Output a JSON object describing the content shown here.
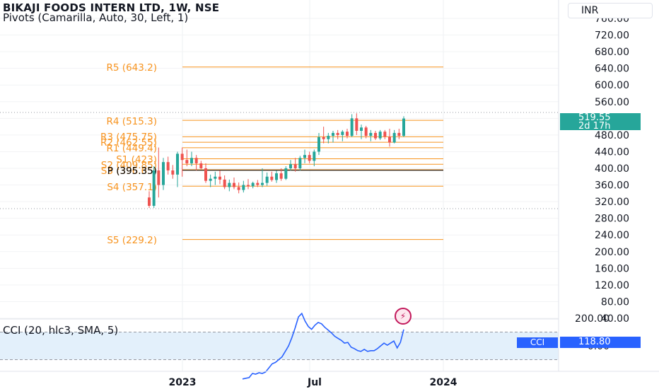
{
  "header": {
    "title": "BIKAJI FOODS INTERN LTD, 1W, NSE",
    "indicator": "Pivots (Camarilla, Auto, 30, Left, 1)",
    "currency": "INR"
  },
  "price_scale": {
    "labels": [
      "760.00",
      "720.00",
      "680.00",
      "640.00",
      "600.00",
      "560.00",
      "520.00",
      "480.00",
      "440.00",
      "400.00",
      "360.00",
      "320.00",
      "280.00",
      "240.00",
      "200.00",
      "160.00",
      "120.00",
      "80.00",
      "40.00"
    ],
    "current_price": "519.55",
    "countdown": "2d 17h"
  },
  "pivot_levels": [
    {
      "label": "R5 (643.2)",
      "value": 643.2,
      "color": "#f7931e"
    },
    {
      "label": "R4 (515.3)",
      "value": 515.3,
      "color": "#f7931e"
    },
    {
      "label": "R3 (475.75)",
      "value": 475.75,
      "color": "#f7931e"
    },
    {
      "label": "R2 (462.55)",
      "value": 462.55,
      "color": "#f7931e"
    },
    {
      "label": "R1 (449.4)",
      "value": 449.4,
      "color": "#f7931e"
    },
    {
      "label": "S1 (423)",
      "value": 423,
      "color": "#f7931e"
    },
    {
      "label": "S2 (409.85)",
      "value": 409.85,
      "color": "#f7931e"
    },
    {
      "label": "S3 (396.65)",
      "value": 396.65,
      "color": "#f7931e"
    },
    {
      "label": "P (395.35)",
      "value": 395.35,
      "color": "#000000"
    },
    {
      "label": "S4 (357.1)",
      "value": 357.1,
      "color": "#f7931e"
    },
    {
      "label": "S5 (229.2)",
      "value": 229.2,
      "color": "#f7931e"
    }
  ],
  "cci_panel": {
    "title": "CCI (20, hlc3, SMA, 5)",
    "labels": [
      "200.00",
      "0.00"
    ],
    "tag_label": "CCI",
    "value": "118.80"
  },
  "time_axis": {
    "labels": [
      "2023",
      "Jul",
      "2024"
    ]
  },
  "colors": {
    "up": "#26a69a",
    "down": "#ef5350",
    "pivot": "#f7931e",
    "cci_line": "#2962ff",
    "cci_band": "#e3f0fb"
  },
  "chart_data": {
    "type": "candlestick",
    "title": "BIKAJI FOODS INTERN LTD, 1W, NSE",
    "ylim": [
      20,
      780
    ],
    "ohlc": [
      [
        330,
        345,
        305,
        310
      ],
      [
        310,
        405,
        305,
        395
      ],
      [
        395,
        450,
        330,
        360
      ],
      [
        360,
        425,
        348,
        415
      ],
      [
        415,
        428,
        385,
        395
      ],
      [
        395,
        408,
        375,
        385
      ],
      [
        385,
        440,
        355,
        435
      ],
      [
        435,
        450,
        380,
        420
      ],
      [
        420,
        445,
        405,
        412
      ],
      [
        412,
        440,
        405,
        425
      ],
      [
        425,
        432,
        395,
        412
      ],
      [
        412,
        418,
        398,
        400
      ],
      [
        400,
        412,
        365,
        370
      ],
      [
        370,
        385,
        355,
        375
      ],
      [
        375,
        392,
        360,
        380
      ],
      [
        380,
        395,
        362,
        373
      ],
      [
        373,
        383,
        350,
        355
      ],
      [
        355,
        373,
        345,
        365
      ],
      [
        365,
        378,
        350,
        355
      ],
      [
        355,
        366,
        340,
        348
      ],
      [
        348,
        370,
        342,
        360
      ],
      [
        360,
        374,
        350,
        357
      ],
      [
        357,
        368,
        352,
        365
      ],
      [
        365,
        372,
        355,
        360
      ],
      [
        360,
        400,
        355,
        365
      ],
      [
        365,
        390,
        358,
        380
      ],
      [
        380,
        392,
        368,
        372
      ],
      [
        372,
        395,
        365,
        388
      ],
      [
        388,
        400,
        370,
        375
      ],
      [
        375,
        405,
        372,
        400
      ],
      [
        400,
        420,
        395,
        410
      ],
      [
        410,
        425,
        392,
        400
      ],
      [
        400,
        430,
        395,
        425
      ],
      [
        425,
        445,
        412,
        432
      ],
      [
        432,
        440,
        412,
        418
      ],
      [
        418,
        445,
        405,
        440
      ],
      [
        440,
        485,
        432,
        475
      ],
      [
        475,
        500,
        460,
        470
      ],
      [
        470,
        485,
        460,
        478
      ],
      [
        478,
        490,
        462,
        485
      ],
      [
        485,
        492,
        470,
        480
      ],
      [
        480,
        492,
        465,
        488
      ],
      [
        488,
        495,
        472,
        478
      ],
      [
        478,
        530,
        475,
        520
      ],
      [
        520,
        532,
        480,
        490
      ],
      [
        490,
        505,
        470,
        498
      ],
      [
        498,
        502,
        472,
        478
      ],
      [
        478,
        492,
        465,
        485
      ],
      [
        485,
        490,
        468,
        472
      ],
      [
        472,
        492,
        468,
        488
      ],
      [
        488,
        492,
        470,
        476
      ],
      [
        476,
        495,
        452,
        462
      ],
      [
        462,
        492,
        460,
        485
      ],
      [
        485,
        495,
        470,
        478
      ],
      [
        478,
        525,
        475,
        519.55
      ]
    ],
    "cci": [
      -240,
      -235,
      -230,
      -200,
      -205,
      -195,
      -200,
      -190,
      -160,
      -130,
      -120,
      -100,
      -80,
      -40,
      0,
      60,
      130,
      210,
      235,
      180,
      140,
      120,
      150,
      170,
      160,
      135,
      115,
      95,
      70,
      55,
      40,
      20,
      25,
      -10,
      -20,
      -35,
      -40,
      -25,
      -40,
      -35,
      -35,
      -20,
      0,
      20,
      5,
      20,
      35,
      -15,
      25,
      118.8
    ],
    "pivots": {
      "R5": 643.2,
      "R4": 515.3,
      "R3": 475.75,
      "R2": 462.55,
      "R1": 449.4,
      "P": 395.35,
      "S1": 423,
      "S2": 409.85,
      "S3": 396.65,
      "S4": 357.1,
      "S5": 229.2
    },
    "x_ticks": [
      "2023",
      "Jul",
      "2024"
    ]
  }
}
